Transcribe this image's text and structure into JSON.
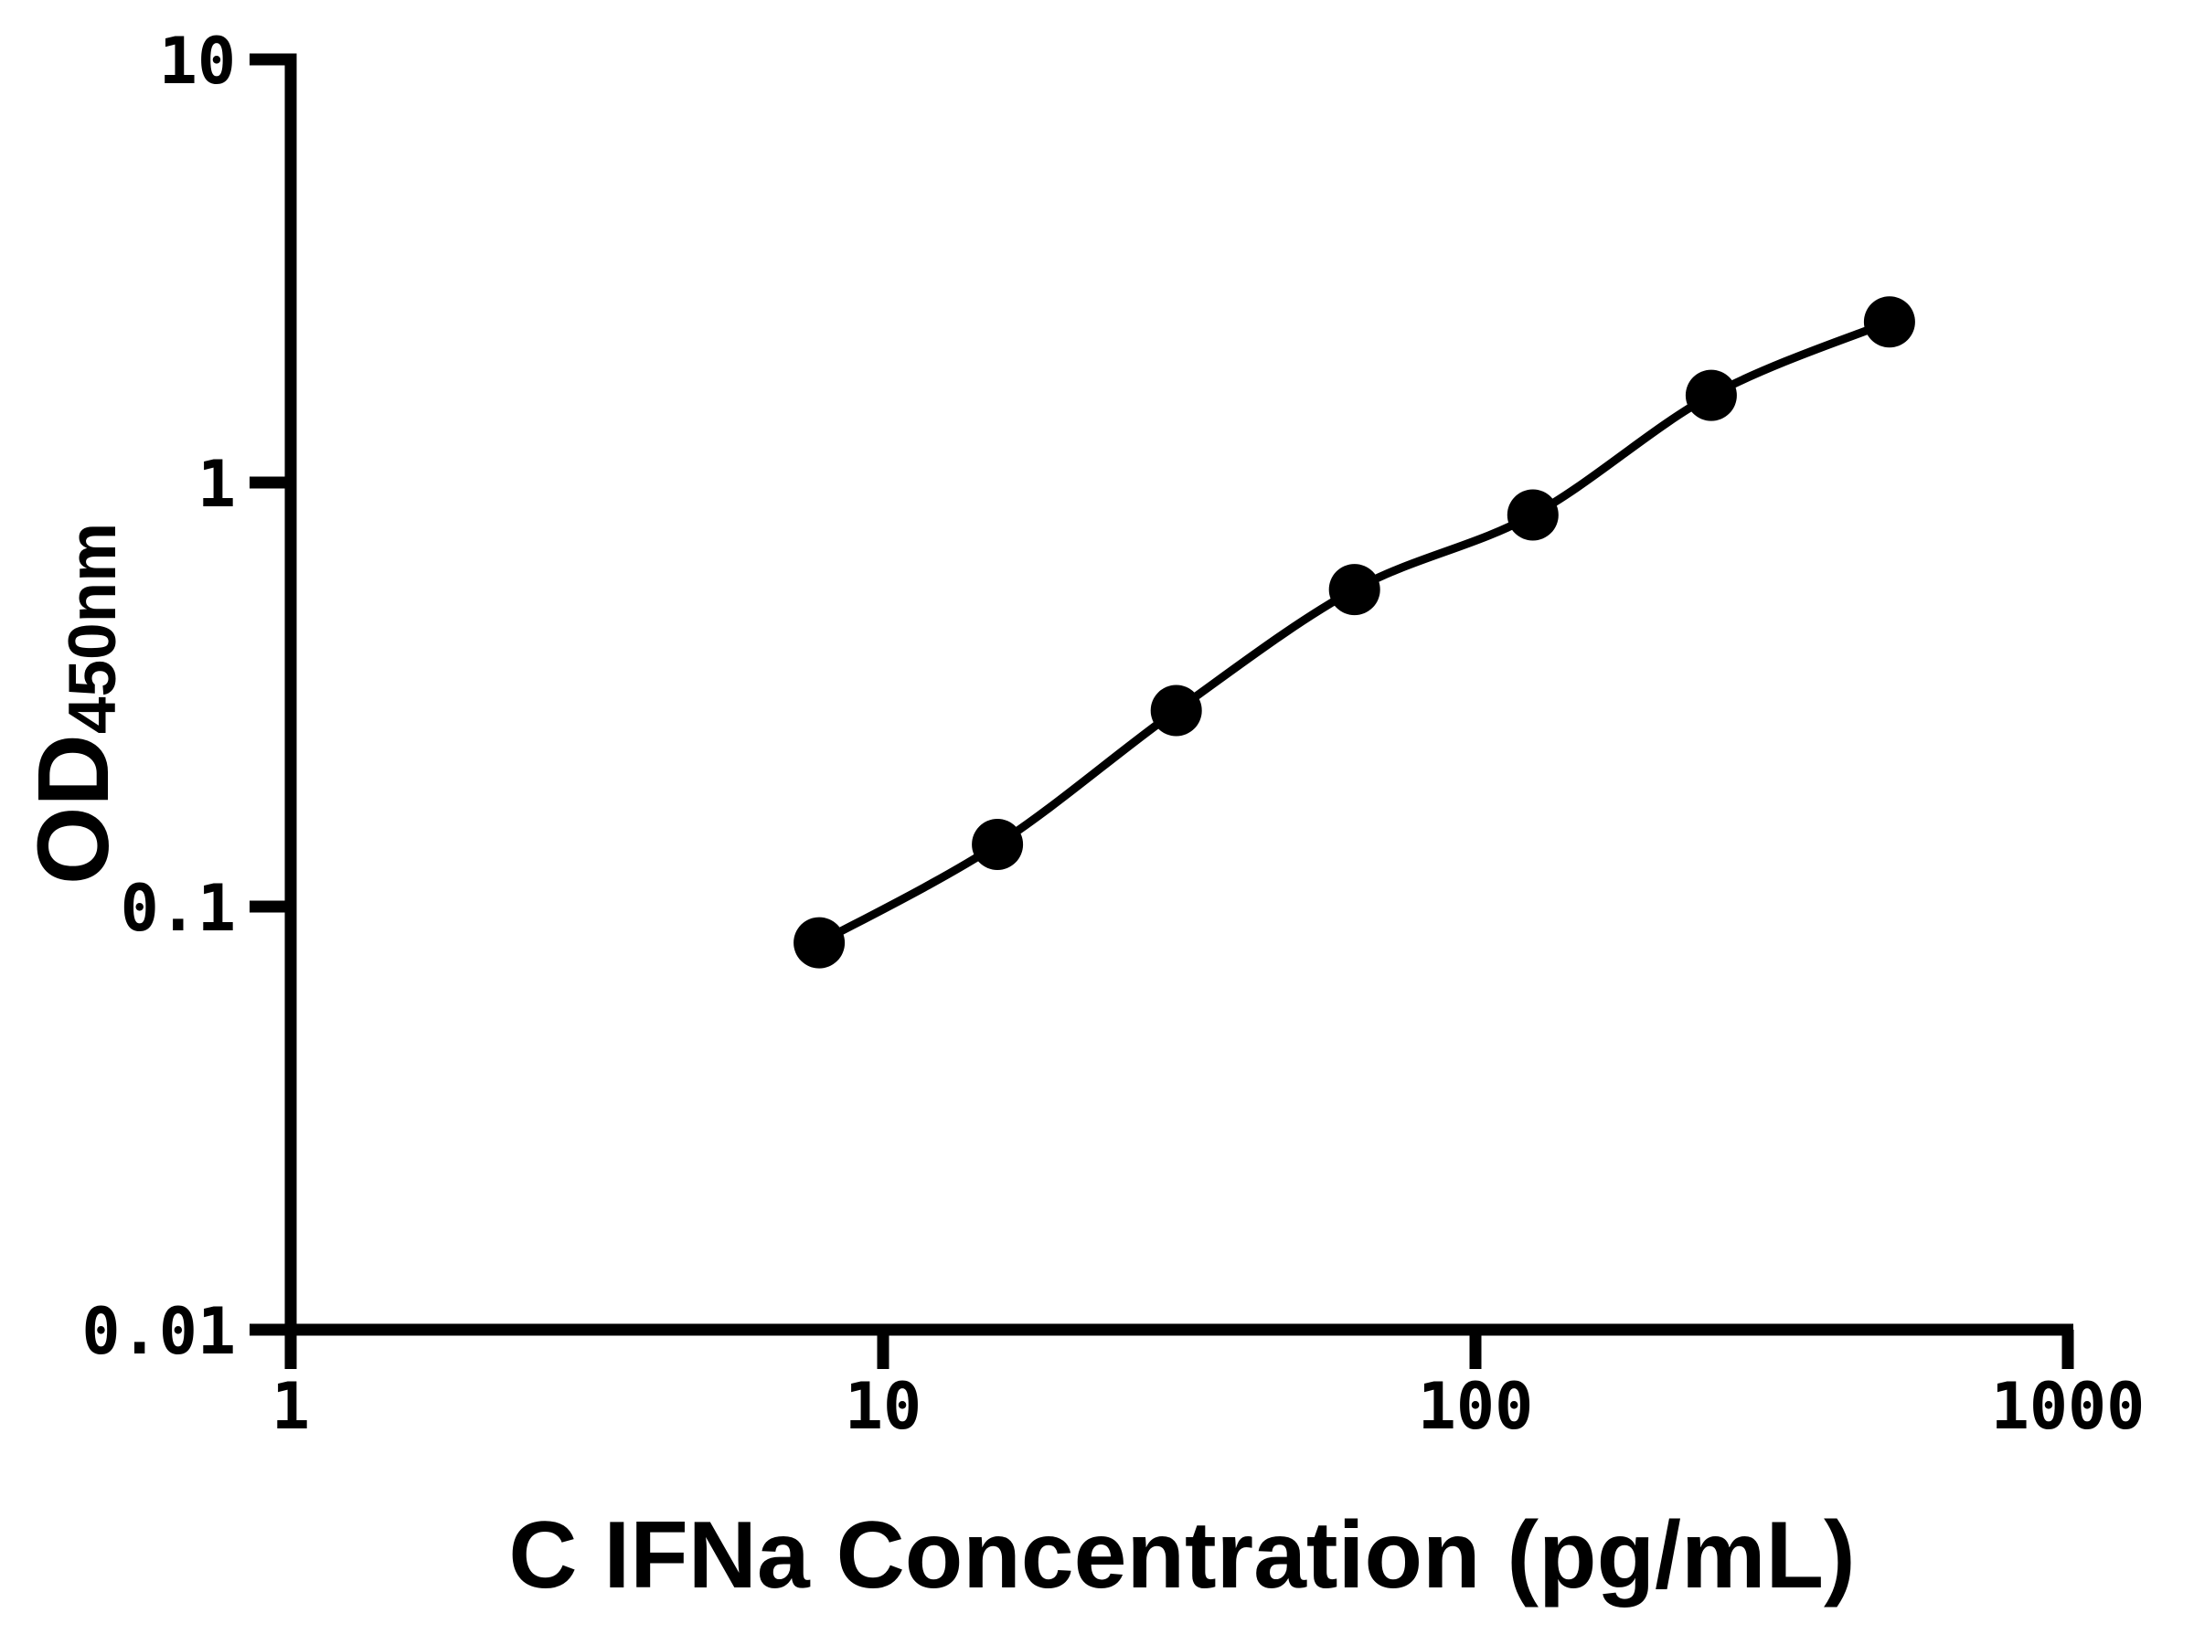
{
  "figure": {
    "background_color": "#ffffff",
    "ink_color": "#000000"
  },
  "chart_data": {
    "type": "line",
    "title": "",
    "xlabel": "C IFNa Concentration (pg/mL)",
    "ylabel": "OD450nm",
    "ylabel_main": "OD",
    "ylabel_sub": "450nm",
    "x_scale": "log10",
    "y_scale": "log10",
    "xlim": [
      1,
      1000
    ],
    "ylim": [
      0.01,
      10
    ],
    "x_ticks": [
      1,
      10,
      100,
      1000
    ],
    "x_tick_labels": [
      "1",
      "10",
      "100",
      "1000"
    ],
    "y_ticks": [
      10,
      1,
      0.1,
      0.01
    ],
    "y_tick_labels": [
      "10",
      "1",
      "0.1",
      "0.01"
    ],
    "grid": false,
    "legend": "none",
    "series": [
      {
        "marker": "filled-circle",
        "line": "smooth",
        "color": "#000000",
        "x_pg_ml": [
          7.8,
          15.6,
          31.25,
          62.5,
          125,
          250,
          500
        ],
        "od_450nm": [
          0.082,
          0.14,
          0.29,
          0.56,
          0.84,
          1.61,
          2.4
        ]
      }
    ]
  }
}
